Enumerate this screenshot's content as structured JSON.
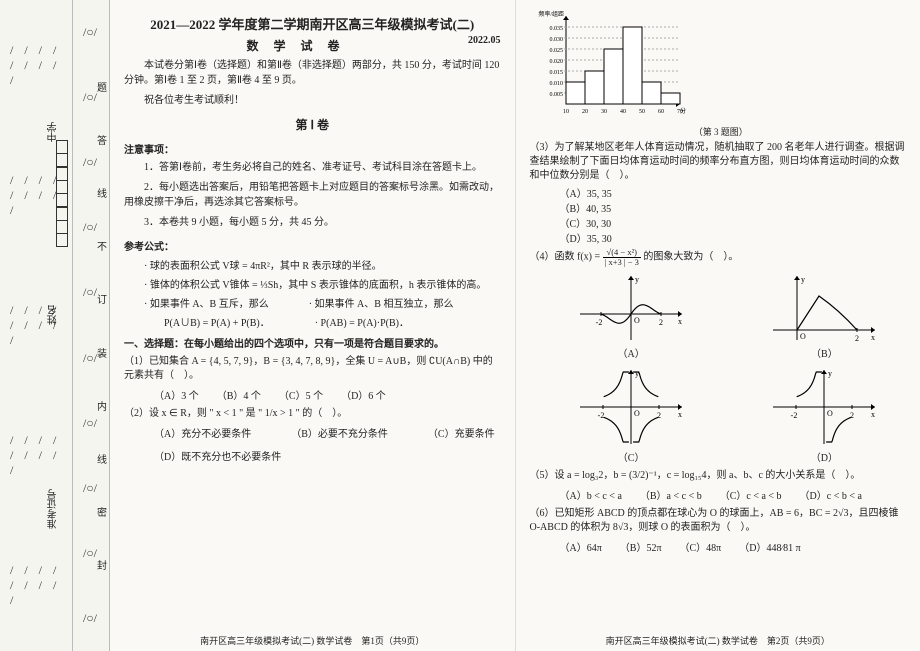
{
  "binding": {
    "vertical_labels": [
      "中学",
      "姓名",
      "准考证号"
    ],
    "seal_marks": [
      "题",
      "答",
      "线",
      "不",
      "订",
      "装",
      "内",
      "线",
      "密",
      "封"
    ]
  },
  "header": {
    "title": "2021—2022 学年度第二学期南开区高三年级模拟考试(二)",
    "subtitle": "数 学 试 卷",
    "date": "2022.05",
    "intro1": "本试卷分第Ⅰ卷（选择题）和第Ⅱ卷（非选择题）两部分，共 150 分，考试时间 120 分钟。第Ⅰ卷 1 至 2 页，第Ⅱ卷 4 至 9 页。",
    "intro2": "祝各位考生考试顺利！",
    "part1_title": "第 Ⅰ 卷"
  },
  "notice": {
    "head": "注意事项：",
    "items": [
      "1．答第Ⅰ卷前，考生务必将自己的姓名、准考证号、考试科目涂在答题卡上。",
      "2．每小题选出答案后，用铅笔把答题卡上对应题目的答案标号涂黑。如需改动，用橡皮擦干净后，再选涂其它答案标号。",
      "3．本卷共 9 小题，每小题 5 分，共 45 分。"
    ]
  },
  "reference": {
    "head": "参考公式：",
    "sphere": "· 球的表面积公式 V球 = 4πR²，其中 R 表示球的半径。",
    "cone": "· 锥体的体积公式 V锥体 = ⅓Sh，其中 S 表示锥体的底面积，h 表示锥体的高。",
    "prob_head": "· 如果事件 A、B 互斥，那么　　　　· 如果事件 A、B 相互独立，那么",
    "prob_line": "　P(A∪B) = P(A) + P(B)．　　　　　· P(AB) = P(A)·P(B)．"
  },
  "section1_title": "一、选择题：在每小题给出的四个选项中，只有一项是符合题目要求的。",
  "q1": {
    "stem": "（1）已知集合 A = {4, 5, 7, 9}，B = {3, 4, 7, 8, 9}，全集 U = A∪B，则 ∁U(A∩B) 中的元素共有（　）。",
    "opts": [
      "（A）3 个",
      "（B）4 个",
      "（C）5 个",
      "（D）6 个"
    ]
  },
  "q2": {
    "stem": "（2）设 x ∈ R，则 \" x < 1 \" 是 \" 1/x > 1 \" 的（　）。",
    "opts": [
      "（A）充分不必要条件",
      "（B）必要不充分条件",
      "（C）充要条件",
      "（D）既不充分也不必要条件"
    ]
  },
  "q3": {
    "stem": "（3）为了解某地区老年人体育运动情况，随机抽取了 200 名老年人进行调查。根据调查结果绘制了下面日均体育运动时间的频率分布直方图，则日均体育运动时间的众数和中位数分别是（　）。",
    "opts": [
      "（A）35, 35",
      "（B）40, 35",
      "（C）30, 30",
      "（D）35, 30"
    ],
    "hist": {
      "bins": [
        10,
        20,
        30,
        40,
        50,
        60,
        70
      ],
      "heights": [
        0.01,
        0.015,
        0.025,
        0.035,
        0.01,
        0.005
      ],
      "yticks": [
        0.005,
        0.01,
        0.015,
        0.02,
        0.025,
        0.03,
        0.035
      ],
      "ylabel": "频率/组距",
      "xlabel": "分钟",
      "bar_color": "#ffffff",
      "line_color": "#000000",
      "caption": "（第 3 题图）"
    }
  },
  "q4": {
    "stem_pre": "（4）函数 f(x) = ",
    "stem_post": " 的图象大致为（　）。",
    "frac_num": "√(4 − x²)",
    "frac_den": "| x+3 | − 3",
    "labels": [
      "（A）",
      "（B）",
      "（C）",
      "（D）"
    ]
  },
  "q5": {
    "stem": "（5）设 a = log₃2，b = (3/2)⁻¹，c = log₁₅4，则 a、b、c 的大小关系是（　）。",
    "opts": [
      "（A）b < c < a",
      "（B）a < c < b",
      "（C）c < a < b",
      "（D）c < b < a"
    ]
  },
  "q6": {
    "stem": "（6）已知矩形 ABCD 的顶点都在球心为 O 的球面上，AB = 6，BC = 2√3，且四棱锥 O-ABCD 的体积为 8√3，则球 O 的表面积为（　）。",
    "opts": [
      "（A）64π",
      "（B）52π",
      "（C）48π",
      "（D）448⁄81 π"
    ]
  },
  "footer_l": "南开区高三年级模拟考试(二) 数学试卷　第1页（共9页）",
  "footer_r": "南开区高三年级模拟考试(二) 数学试卷　第2页（共9页）"
}
